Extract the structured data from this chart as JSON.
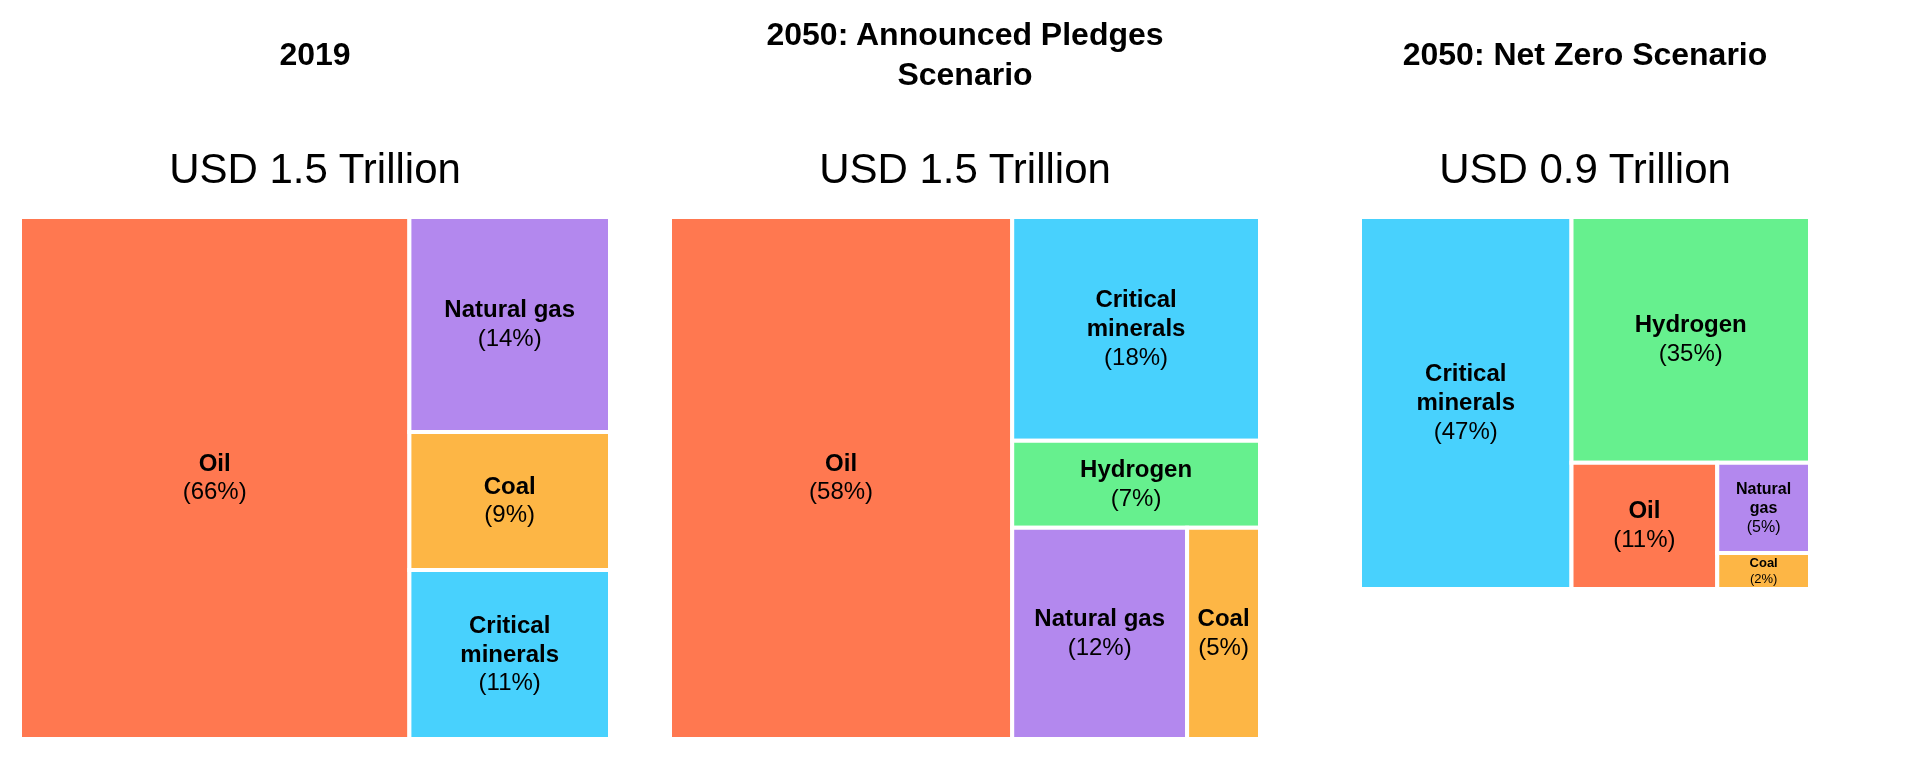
{
  "chart_data": [
    {
      "type": "other",
      "title": "2019",
      "subtitle": "USD 1.5 Trillion",
      "categories": [
        "Oil",
        "Natural gas",
        "Coal",
        "Critical minerals"
      ],
      "values": [
        66,
        14,
        9,
        11
      ],
      "value_labels": [
        "(66%)",
        "(14%)",
        "(9%)",
        "(11%)"
      ],
      "colors": [
        "#ff7850",
        "#b388ee",
        "#fdb645",
        "#48d1fd"
      ]
    },
    {
      "type": "other",
      "title": "2050: Announced Pledges Scenario",
      "subtitle": "USD 1.5 Trillion",
      "categories": [
        "Oil",
        "Critical minerals",
        "Hydrogen",
        "Natural gas",
        "Coal"
      ],
      "values": [
        58,
        18,
        7,
        12,
        5
      ],
      "value_labels": [
        "(58%)",
        "(18%)",
        "(7%)",
        "(12%)",
        "(5%)"
      ],
      "colors": [
        "#ff7850",
        "#48d1fd",
        "#66f08e",
        "#b388ee",
        "#fdb645"
      ]
    },
    {
      "type": "other",
      "title": "2050: Net Zero Scenario",
      "subtitle": "USD 0.9 Trillion",
      "categories": [
        "Critical minerals",
        "Hydrogen",
        "Oil",
        "Natural gas",
        "Coal"
      ],
      "values": [
        47,
        35,
        11,
        5,
        2
      ],
      "value_labels": [
        "(47%)",
        "(35%)",
        "(11%)",
        "(5%)",
        "(2%)"
      ],
      "colors": [
        "#48d1fd",
        "#66f08e",
        "#ff7850",
        "#b388ee",
        "#fdb645"
      ]
    }
  ]
}
